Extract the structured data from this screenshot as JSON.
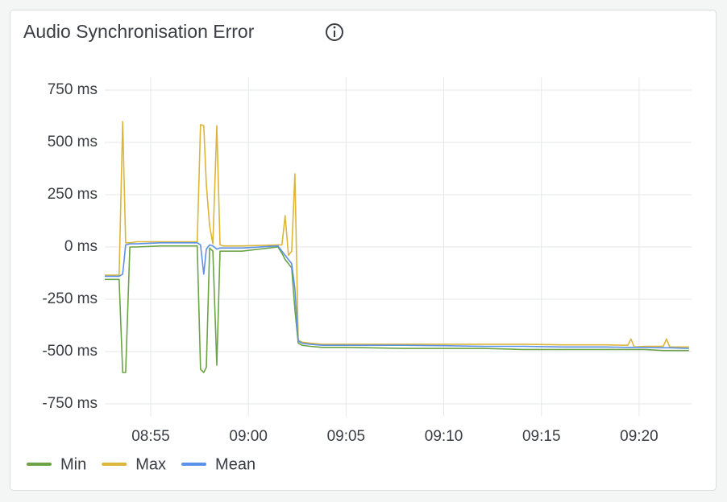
{
  "chart_data": {
    "type": "line",
    "title": "Audio Synchronisation Error",
    "x": [
      "08:52:39",
      "08:53:23",
      "08:53:34",
      "08:53:43",
      "08:53:56",
      "08:54:18",
      "08:55:32",
      "08:57:23",
      "08:57:33",
      "08:57:43",
      "08:57:51",
      "08:58:01",
      "08:58:11",
      "08:58:23",
      "08:58:33",
      "08:58:43",
      "08:59:40",
      "09:01:31",
      "09:01:43",
      "09:01:53",
      "09:02:03",
      "09:02:13",
      "09:02:23",
      "09:02:33",
      "09:02:45",
      "09:03:10",
      "09:03:47",
      "09:05:01",
      "09:07:55",
      "09:09:59",
      "09:12:02",
      "09:14:06",
      "09:16:10",
      "09:18:14",
      "09:19:25",
      "09:19:35",
      "09:19:45",
      "09:20:17",
      "09:21:14",
      "09:21:24",
      "09:21:34",
      "09:22:33"
    ],
    "series": [
      {
        "name": "Min",
        "color": "#6ca346",
        "values": [
          -155,
          -155,
          -600,
          -600,
          0,
          0,
          5,
          5,
          -585,
          -600,
          -575,
          -5,
          -20,
          -565,
          -20,
          -20,
          -20,
          0,
          -30,
          -60,
          -80,
          -100,
          -300,
          -460,
          -470,
          -475,
          -480,
          -480,
          -485,
          -485,
          -485,
          -490,
          -490,
          -490,
          -490,
          -490,
          -490,
          -490,
          -495,
          -495,
          -495,
          -495
        ]
      },
      {
        "name": "Max",
        "color": "#dbb63b",
        "values": [
          -135,
          -135,
          600,
          20,
          20,
          25,
          25,
          25,
          585,
          580,
          300,
          100,
          15,
          580,
          10,
          5,
          5,
          10,
          10,
          150,
          -40,
          -20,
          350,
          -445,
          -455,
          -460,
          -465,
          -465,
          -465,
          -465,
          -465,
          -465,
          -468,
          -468,
          -470,
          -440,
          -478,
          -475,
          -475,
          -440,
          -478,
          -478
        ]
      },
      {
        "name": "Mean",
        "color": "#5b91e8",
        "values": [
          -140,
          -140,
          -130,
          10,
          15,
          15,
          20,
          20,
          10,
          -130,
          -10,
          10,
          5,
          -10,
          -5,
          -5,
          -5,
          5,
          -20,
          -40,
          -60,
          -80,
          -200,
          -450,
          -460,
          -465,
          -470,
          -470,
          -470,
          -472,
          -475,
          -475,
          -478,
          -478,
          -480,
          -480,
          -480,
          -480,
          -482,
          -482,
          -482,
          -485
        ]
      }
    ],
    "xlim": [
      "08:52:39",
      "09:22:41"
    ],
    "xticks": [
      "08:55",
      "09:00",
      "09:05",
      "09:10",
      "09:15",
      "09:20"
    ],
    "ylim": [
      -810,
      810
    ],
    "yticks": [
      {
        "value": 750,
        "label": "750 ms"
      },
      {
        "value": 500,
        "label": "500 ms"
      },
      {
        "value": 250,
        "label": "250 ms"
      },
      {
        "value": 0,
        "label": "0 ms"
      },
      {
        "value": -250,
        "label": "-250 ms"
      },
      {
        "value": -500,
        "label": "-500 ms"
      },
      {
        "value": -750,
        "label": "-750 ms"
      }
    ],
    "grid": true
  }
}
